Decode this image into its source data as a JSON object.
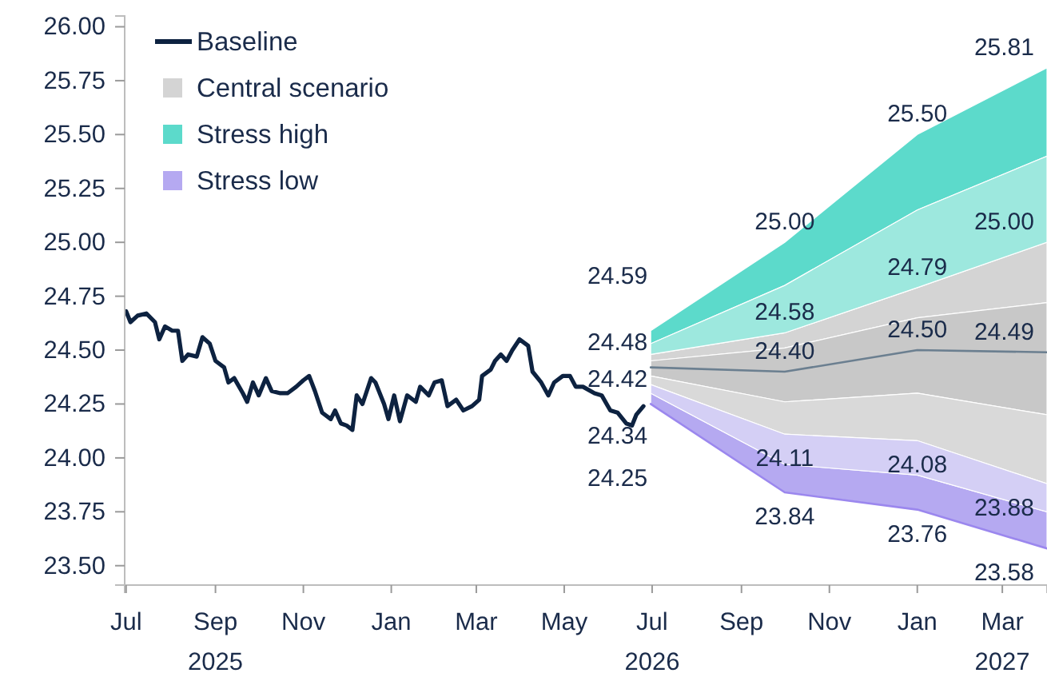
{
  "chart_data": {
    "type": "line",
    "xlim": [
      "2025-06-30",
      "2027-04-01"
    ],
    "xticks": [
      {
        "value": "2025-07-01",
        "label": "Jul"
      },
      {
        "value": "2025-09-01",
        "label": "Sep\n2025"
      },
      {
        "value": "2025-11-01",
        "label": "Nov"
      },
      {
        "value": "2026-01-01",
        "label": "Jan"
      },
      {
        "value": "2026-03-01",
        "label": "Mar"
      },
      {
        "value": "2026-05-01",
        "label": "May"
      },
      {
        "value": "2026-07-01",
        "label": "Jul\n2026"
      },
      {
        "value": "2026-09-01",
        "label": "Sep"
      },
      {
        "value": "2026-11-01",
        "label": "Nov"
      },
      {
        "value": "2027-01-01",
        "label": "Jan"
      },
      {
        "value": "2027-03-01",
        "label": "Mar\n2027"
      }
    ],
    "ylim": [
      23.41,
      26.05
    ],
    "yticks": [
      {
        "value": 23.5,
        "label": "23.50"
      },
      {
        "value": 23.75,
        "label": "23.75"
      },
      {
        "value": 24,
        "label": "24.00"
      },
      {
        "value": 24.25,
        "label": "24.25"
      },
      {
        "value": 24.5,
        "label": "24.50"
      },
      {
        "value": 24.75,
        "label": "24.75"
      },
      {
        "value": 25,
        "label": "25.00"
      },
      {
        "value": 25.25,
        "label": "25.25"
      },
      {
        "value": 25.5,
        "label": "25.50"
      },
      {
        "value": 25.75,
        "label": "25.75"
      },
      {
        "value": 26,
        "label": "26.00"
      }
    ],
    "legend": "top left",
    "series": [
      {
        "name": "Baseline",
        "type": "line",
        "color": "#0d2240",
        "x": [
          "2025-07-01",
          "2025-07-04",
          "2025-07-09",
          "2025-07-15",
          "2025-07-21",
          "2025-07-24",
          "2025-07-28",
          "2025-08-02",
          "2025-08-06",
          "2025-08-09",
          "2025-08-13",
          "2025-08-19",
          "2025-08-23",
          "2025-08-28",
          "2025-09-01",
          "2025-09-07",
          "2025-09-10",
          "2025-09-14",
          "2025-09-20",
          "2025-09-23",
          "2025-09-27",
          "2025-10-01",
          "2025-10-06",
          "2025-10-10",
          "2025-10-16",
          "2025-10-21",
          "2025-10-27",
          "2025-11-01",
          "2025-11-05",
          "2025-11-09",
          "2025-11-14",
          "2025-11-20",
          "2025-11-23",
          "2025-11-27",
          "2025-12-01",
          "2025-12-05",
          "2025-12-08",
          "2025-12-12",
          "2025-12-18",
          "2025-12-21",
          "2025-12-27",
          "2025-12-30",
          "2026-01-03",
          "2026-01-07",
          "2026-01-12",
          "2026-01-18",
          "2026-01-21",
          "2026-01-27",
          "2026-01-31",
          "2026-02-05",
          "2026-02-09",
          "2026-02-15",
          "2026-02-20",
          "2026-02-26",
          "2026-03-03",
          "2026-03-05",
          "2026-03-11",
          "2026-03-14",
          "2026-03-18",
          "2026-03-22",
          "2026-03-26",
          "2026-03-31",
          "2026-04-06",
          "2026-04-09",
          "2026-04-15",
          "2026-04-20",
          "2026-04-24",
          "2026-04-30",
          "2026-05-05",
          "2026-05-09",
          "2026-05-14",
          "2026-05-22",
          "2026-05-27",
          "2026-06-02",
          "2026-06-07",
          "2026-06-13",
          "2026-06-17",
          "2026-06-20",
          "2026-06-25"
        ],
        "values": [
          24.68,
          24.63,
          24.66,
          24.67,
          24.63,
          24.55,
          24.61,
          24.59,
          24.59,
          24.45,
          24.48,
          24.47,
          24.56,
          24.53,
          24.45,
          24.42,
          24.35,
          24.37,
          24.3,
          24.26,
          24.35,
          24.29,
          24.37,
          24.31,
          24.3,
          24.3,
          24.33,
          24.36,
          24.38,
          24.31,
          24.21,
          24.18,
          24.22,
          24.16,
          24.15,
          24.13,
          24.29,
          24.25,
          24.37,
          24.35,
          24.25,
          24.18,
          24.29,
          24.17,
          24.29,
          24.26,
          24.33,
          24.29,
          24.35,
          24.36,
          24.24,
          24.27,
          24.22,
          24.24,
          24.27,
          24.38,
          24.41,
          24.45,
          24.48,
          24.45,
          24.5,
          24.55,
          24.52,
          24.4,
          24.35,
          24.29,
          24.35,
          24.38,
          24.38,
          24.33,
          24.33,
          24.3,
          24.29,
          24.22,
          24.21,
          24.16,
          24.15,
          24.2,
          24.24
        ]
      },
      {
        "name": "Central scenario",
        "type": "area",
        "color": "#d4d4d4",
        "x": [
          "2026-06-30",
          "2026-10-01",
          "2027-01-01",
          "2027-04-01"
        ],
        "values": [
          24.48,
          24.58,
          24.79,
          25.0
        ]
      },
      {
        "name": "Stress high",
        "type": "area",
        "color": "#5cdacb",
        "x": [
          "2026-06-30",
          "2026-10-01",
          "2027-01-01",
          "2027-04-01"
        ],
        "values": [
          24.59,
          25.0,
          25.5,
          25.81
        ]
      },
      {
        "name": "Stress low",
        "type": "area",
        "color": "#b5a9f1",
        "x": [
          "2026-06-30",
          "2026-10-01",
          "2027-01-01",
          "2027-04-01"
        ],
        "values": [
          24.3,
          23.97,
          23.92,
          23.75
        ]
      },
      {
        "type": "area",
        "color": "#9de8de",
        "x": [
          "2026-06-30",
          "2026-10-01",
          "2027-01-01",
          "2027-04-01"
        ],
        "values": [
          24.53,
          24.8,
          25.15,
          25.4
        ]
      },
      {
        "type": "area",
        "color": "#c8c8c8",
        "x": [
          "2026-06-30",
          "2026-10-01",
          "2027-01-01",
          "2027-04-01"
        ],
        "values": [
          24.45,
          24.51,
          24.65,
          24.72
        ]
      },
      {
        "type": "area",
        "color": "#d9d9d9",
        "x": [
          "2026-06-30",
          "2026-10-01",
          "2027-01-01",
          "2027-04-01"
        ],
        "values": [
          24.38,
          24.26,
          24.3,
          24.2
        ]
      },
      {
        "type": "area",
        "color": "#d4cff5",
        "x": [
          "2026-06-30",
          "2026-10-01",
          "2027-01-01",
          "2027-04-01"
        ],
        "values": [
          24.34,
          24.11,
          24.08,
          23.88
        ]
      },
      {
        "type": "line",
        "color": "#9b87ee",
        "x": [
          "2026-06-30",
          "2026-10-01",
          "2027-01-01",
          "2027-04-01"
        ],
        "values": [
          24.25,
          23.84,
          23.76,
          23.58
        ]
      },
      {
        "type": "line",
        "color": "#6b7f90",
        "x": [
          "2026-06-30",
          "2026-10-01",
          "2027-01-01",
          "2027-04-01"
        ],
        "values": [
          24.42,
          24.4,
          24.5,
          24.49
        ]
      }
    ],
    "annotations": [
      {
        "text": "24.59",
        "x": "2026-06-30",
        "y": 24.59
      },
      {
        "text": "24.48",
        "x": "2026-06-30",
        "y": 24.48
      },
      {
        "text": "24.42",
        "x": "2026-06-30",
        "y": 24.42
      },
      {
        "text": "24.34",
        "x": "2026-06-30",
        "y": 24.34
      },
      {
        "text": "24.25",
        "x": "2026-06-30",
        "y": 24.25
      },
      {
        "text": "25.00",
        "x": "2026-10-01",
        "y": 25.0
      },
      {
        "text": "24.58",
        "x": "2026-10-01",
        "y": 24.58
      },
      {
        "text": "24.40",
        "x": "2026-10-01",
        "y": 24.4
      },
      {
        "text": "24.11",
        "x": "2026-10-01",
        "y": 24.11
      },
      {
        "text": "23.84",
        "x": "2026-10-01",
        "y": 23.84
      },
      {
        "text": "25.50",
        "x": "2027-01-01",
        "y": 25.5
      },
      {
        "text": "24.79",
        "x": "2027-01-01",
        "y": 24.79
      },
      {
        "text": "24.50",
        "x": "2027-01-01",
        "y": 24.5
      },
      {
        "text": "24.08",
        "x": "2027-01-01",
        "y": 24.08
      },
      {
        "text": "23.76",
        "x": "2027-01-01",
        "y": 23.76
      },
      {
        "text": "25.81",
        "x": "2027-04-01",
        "y": 25.81
      },
      {
        "text": "25.00",
        "x": "2027-04-01",
        "y": 25.0
      },
      {
        "text": "24.49",
        "x": "2027-04-01",
        "y": 24.49
      },
      {
        "text": "23.88",
        "x": "2027-04-01",
        "y": 23.88
      },
      {
        "text": "23.58",
        "x": "2027-04-01",
        "y": 23.58
      }
    ]
  }
}
